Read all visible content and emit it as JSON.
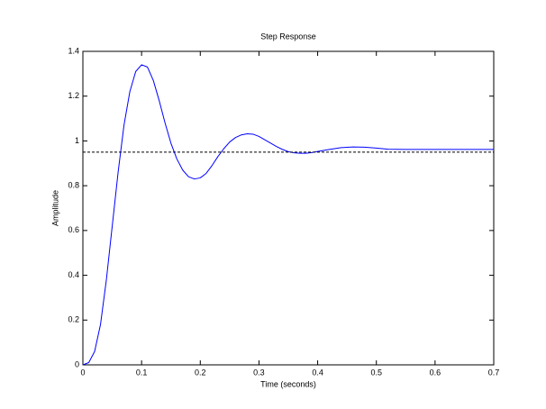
{
  "chart_data": {
    "type": "line",
    "title": "Step Response",
    "x_label": "Time (seconds)",
    "y_label": "Amplitude",
    "xlim": [
      0,
      0.7
    ],
    "xticks": [
      0,
      0.1,
      0.2,
      0.3,
      0.4,
      0.5,
      0.6,
      0.7
    ],
    "ylim": [
      0,
      1.4
    ],
    "yticks": [
      0,
      0.2,
      0.4,
      0.6,
      0.8,
      1,
      1.2,
      1.4
    ],
    "grid": false,
    "series": [
      {
        "color": "#0000ff",
        "dash": "solid",
        "x": [
          0,
          0.01,
          0.02,
          0.03,
          0.04,
          0.05,
          0.06,
          0.07,
          0.08,
          0.09,
          0.1,
          0.11,
          0.12,
          0.13,
          0.14,
          0.15,
          0.16,
          0.17,
          0.18,
          0.19,
          0.2,
          0.21,
          0.22,
          0.23,
          0.24,
          0.25,
          0.26,
          0.27,
          0.28,
          0.29,
          0.3,
          0.31,
          0.32,
          0.33,
          0.34,
          0.35,
          0.36,
          0.37,
          0.38,
          0.39,
          0.4,
          0.42,
          0.44,
          0.46,
          0.48,
          0.5,
          0.52,
          0.55,
          0.6,
          0.65,
          0.7
        ],
        "values": [
          0,
          0.01,
          0.06,
          0.18,
          0.38,
          0.62,
          0.86,
          1.07,
          1.22,
          1.31,
          1.34,
          1.33,
          1.27,
          1.18,
          1.08,
          0.99,
          0.92,
          0.87,
          0.84,
          0.83,
          0.835,
          0.855,
          0.89,
          0.93,
          0.965,
          0.995,
          1.015,
          1.027,
          1.032,
          1.03,
          1.02,
          1.005,
          0.99,
          0.975,
          0.962,
          0.952,
          0.947,
          0.945,
          0.945,
          0.948,
          0.953,
          0.962,
          0.97,
          0.973,
          0.972,
          0.968,
          0.963,
          0.962,
          0.962,
          0.962,
          0.962
        ]
      },
      {
        "color": "#000000",
        "dash": "dashed",
        "x": [
          0,
          0.7
        ],
        "values": [
          0.95,
          0.95
        ]
      }
    ]
  }
}
